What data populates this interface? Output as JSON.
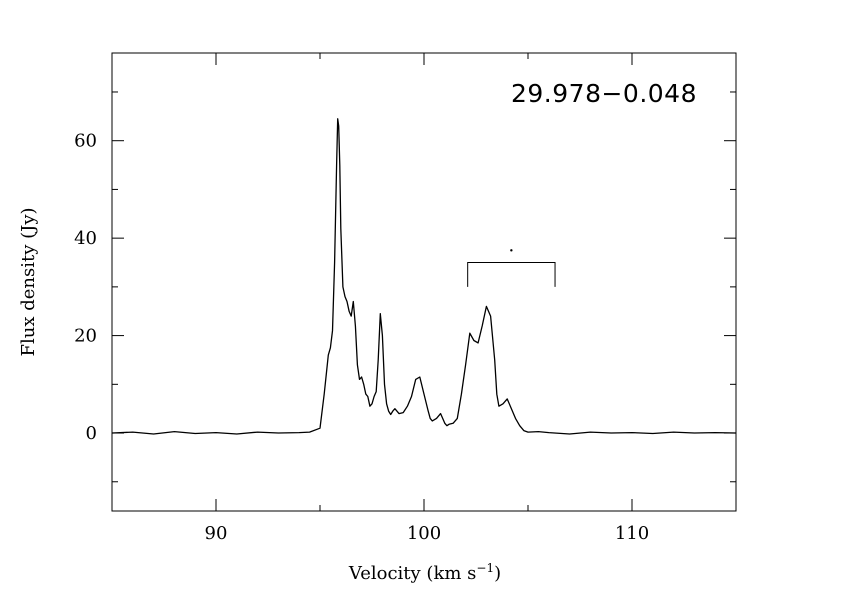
{
  "chart_data": {
    "type": "line",
    "title": "",
    "annotation_label": "29.978−0.048",
    "xlabel": "Velocity (km s",
    "xlabel_sup": "−1",
    "xlabel_close": ")",
    "ylabel": "Flux density (Jy)",
    "xlim": [
      85,
      115
    ],
    "ylim": [
      -16,
      78
    ],
    "x_ticks_major": [
      90,
      100,
      110
    ],
    "x_tick_labels": [
      "90",
      "100",
      "110"
    ],
    "y_ticks_major": [
      0,
      20,
      40,
      60
    ],
    "y_tick_labels": [
      "0",
      "20",
      "40",
      "60"
    ],
    "grid": false,
    "legend": "none",
    "line_color": "#000000",
    "bracket": {
      "x_start": 102.1,
      "x_end": 106.3,
      "y": 35,
      "y_tick_bottom": 30,
      "marker_x": 104.2,
      "marker_y": 37.5
    },
    "series": [
      {
        "x": [
          85.0,
          86.0,
          87.0,
          88.0,
          89.0,
          90.0,
          91.0,
          92.0,
          93.0,
          94.0,
          94.5,
          95.0,
          95.2,
          95.4,
          95.5,
          95.6,
          95.7,
          95.8,
          95.85,
          95.9,
          95.95,
          96.0,
          96.1,
          96.2,
          96.3,
          96.4,
          96.5,
          96.6,
          96.7,
          96.8,
          96.9,
          97.0,
          97.1,
          97.2,
          97.3,
          97.4,
          97.5,
          97.6,
          97.7,
          97.8,
          97.9,
          98.0,
          98.1,
          98.2,
          98.3,
          98.4,
          98.5,
          98.6,
          98.8,
          99.0,
          99.2,
          99.4,
          99.6,
          99.8,
          100.0,
          100.2,
          100.3,
          100.4,
          100.6,
          100.8,
          101.0,
          101.1,
          101.2,
          101.4,
          101.6,
          101.8,
          102.0,
          102.2,
          102.4,
          102.6,
          102.8,
          103.0,
          103.2,
          103.4,
          103.5,
          103.6,
          103.8,
          104.0,
          104.2,
          104.4,
          104.6,
          104.8,
          105.0,
          105.5,
          106.0,
          107.0,
          108.0,
          109.0,
          110.0,
          111.0,
          112.0,
          113.0,
          114.0,
          115.0
        ],
        "y": [
          0.0,
          0.2,
          -0.2,
          0.3,
          -0.1,
          0.1,
          -0.2,
          0.2,
          0.0,
          0.1,
          0.2,
          1.0,
          8.0,
          16.0,
          17.5,
          21.0,
          35.0,
          55.0,
          64.5,
          63.0,
          55.0,
          42.0,
          30.0,
          28.0,
          27.0,
          25.0,
          24.0,
          27.0,
          22.0,
          14.0,
          11.0,
          11.5,
          10.0,
          8.0,
          7.5,
          5.5,
          6.0,
          7.5,
          8.5,
          15.0,
          24.5,
          20.0,
          10.0,
          6.0,
          4.5,
          3.8,
          4.5,
          5.0,
          4.0,
          4.2,
          5.5,
          7.5,
          11.0,
          11.5,
          8.0,
          4.5,
          3.0,
          2.5,
          3.0,
          4.0,
          2.0,
          1.5,
          1.8,
          2.0,
          3.0,
          8.0,
          14.0,
          20.5,
          19.0,
          18.5,
          22.0,
          26.0,
          24.0,
          15.0,
          8.0,
          5.5,
          6.0,
          7.0,
          5.0,
          3.0,
          1.5,
          0.5,
          0.2,
          0.3,
          0.1,
          -0.2,
          0.2,
          0.0,
          0.1,
          -0.1,
          0.2,
          0.0,
          0.1,
          0.0
        ]
      }
    ]
  }
}
